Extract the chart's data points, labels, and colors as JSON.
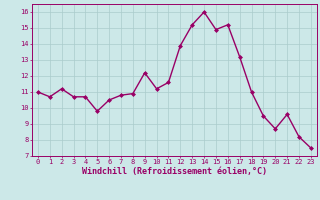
{
  "x": [
    0,
    1,
    2,
    3,
    4,
    5,
    6,
    7,
    8,
    9,
    10,
    11,
    12,
    13,
    14,
    15,
    16,
    17,
    18,
    19,
    20,
    21,
    22,
    23
  ],
  "y": [
    11.0,
    10.7,
    11.2,
    10.7,
    10.7,
    9.8,
    10.5,
    10.8,
    10.9,
    12.2,
    11.2,
    11.6,
    13.9,
    15.2,
    16.0,
    14.9,
    15.2,
    13.2,
    11.0,
    9.5,
    8.7,
    9.6,
    8.2,
    7.5
  ],
  "line_color": "#990066",
  "marker": "D",
  "marker_size": 2.0,
  "bg_color": "#cce8e8",
  "grid_color": "#aacccc",
  "xlabel": "Windchill (Refroidissement éolien,°C)",
  "xlabel_color": "#990066",
  "tick_color": "#990066",
  "ylim": [
    7,
    16.5
  ],
  "yticks": [
    7,
    8,
    9,
    10,
    11,
    12,
    13,
    14,
    15,
    16
  ],
  "xlim": [
    -0.5,
    23.5
  ],
  "xticks": [
    0,
    1,
    2,
    3,
    4,
    5,
    6,
    7,
    8,
    9,
    10,
    11,
    12,
    13,
    14,
    15,
    16,
    17,
    18,
    19,
    20,
    21,
    22,
    23
  ],
  "line_width": 1.0,
  "tick_fontsize": 5.0,
  "xlabel_fontsize": 6.0
}
